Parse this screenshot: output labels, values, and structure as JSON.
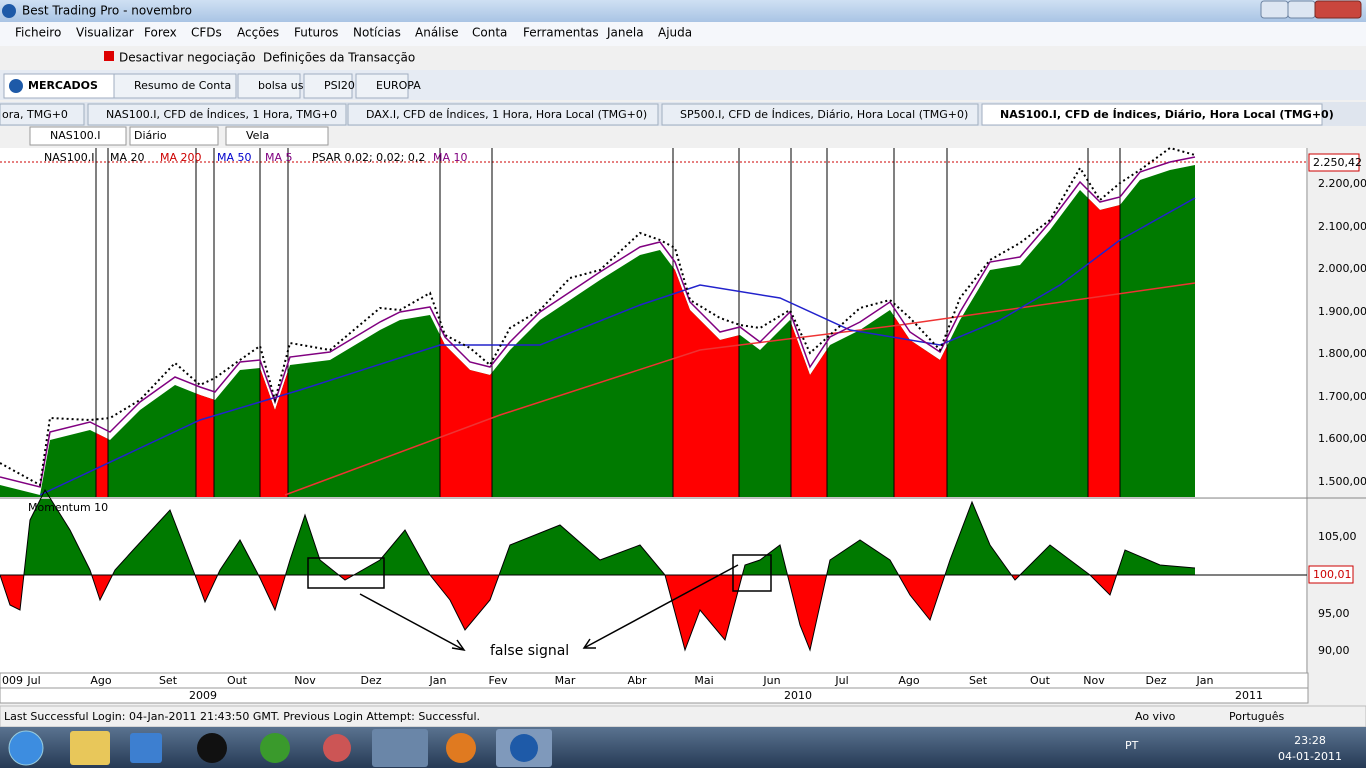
{
  "window": {
    "title": "Best Trading Pro - novembro"
  },
  "menu": [
    "Ficheiro",
    "Visualizar",
    "Forex",
    "CFDs",
    "Acções",
    "Futuros",
    "Notícias",
    "Análise",
    "Conta",
    "Ferramentas",
    "Janela",
    "Ajuda"
  ],
  "toolbar": {
    "disable_trading": "Desactivar negociação",
    "settings": "Definições da Transacção"
  },
  "tabs": [
    "MERCADOS",
    "Resumo de Conta",
    "bolsa usa",
    "PSI20",
    "EUROPA"
  ],
  "chart_tabs": [
    "ora, TMG+0",
    "NAS100.I, CFD de Índices, 1 Hora, TMG+0",
    "DAX.I, CFD de Índices, 1 Hora, Hora Local (TMG+0)",
    "SP500.I, CFD de Índices, Diário, Hora Local (TMG+0)",
    "NAS100.I, CFD de Índices, Diário, Hora Local (TMG+0)"
  ],
  "chart_toolbar": {
    "symbol": "NAS100.I",
    "period": "Diário",
    "style": "Vela"
  },
  "indicators": [
    "NAS100.I",
    "MA 20",
    "MA 200",
    "MA 50",
    "MA 5",
    "PSAR 0,02; 0,02; 0,2",
    "MA 10"
  ],
  "price_axis": {
    "current": "2.250,42",
    "ticks": [
      "2.200,00",
      "2.100,00",
      "2.000,00",
      "1.900,00",
      "1.800,00",
      "1.700,00",
      "1.600,00",
      "1.500,00"
    ]
  },
  "momentum": {
    "label": "Momentum 10",
    "current": "100,01",
    "ticks": [
      "105,00",
      "95,00",
      "90,00"
    ],
    "annotation": "false signal"
  },
  "time_axis": {
    "months": [
      "009",
      "Jul",
      "Ago",
      "Set",
      "Out",
      "Nov",
      "Dez",
      "Jan",
      "Fev",
      "Mar",
      "Abr",
      "Mai",
      "Jun",
      "Jul",
      "Ago",
      "Set",
      "Out",
      "Nov",
      "Dez",
      "Jan"
    ],
    "years": [
      "2009",
      "2010",
      "2011"
    ]
  },
  "status": {
    "message": "Last Successful Login: 04-Jan-2011 21:43:50 GMT. Previous Login Attempt: Successful.",
    "connection": "Ao vivo",
    "language": "Português"
  },
  "taskbar": {
    "lang": "PT",
    "time": "23:28",
    "date": "04-01-2011"
  }
}
